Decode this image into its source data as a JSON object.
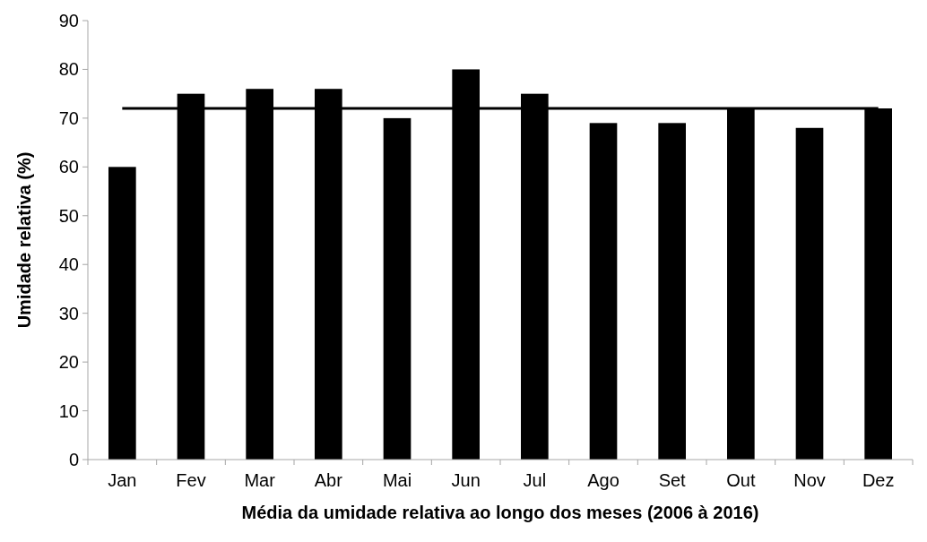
{
  "chart_data": {
    "type": "bar",
    "xlabel": "Média da umidade relativa ao longo dos meses (2006 à 2016)",
    "ylabel": "Umidade relativa (%)",
    "categories": [
      "Jan",
      "Fev",
      "Mar",
      "Abr",
      "Mai",
      "Jun",
      "Jul",
      "Ago",
      "Set",
      "Out",
      "Nov",
      "Dez"
    ],
    "series": [
      {
        "color": "#000000",
        "values": [
          60,
          75,
          76,
          76,
          70,
          80,
          75,
          69,
          69,
          72,
          68,
          72
        ]
      },
      {
        "type": "line",
        "color": "#000000",
        "values": [
          72,
          72,
          72,
          72,
          72,
          72,
          72,
          72,
          72,
          72,
          72,
          72
        ]
      }
    ],
    "ylim": [
      0,
      90
    ],
    "yticks": [
      0,
      10,
      20,
      30,
      40,
      50,
      60,
      70,
      80,
      90
    ],
    "grid": false,
    "marker": "none",
    "line_style": "solid"
  }
}
